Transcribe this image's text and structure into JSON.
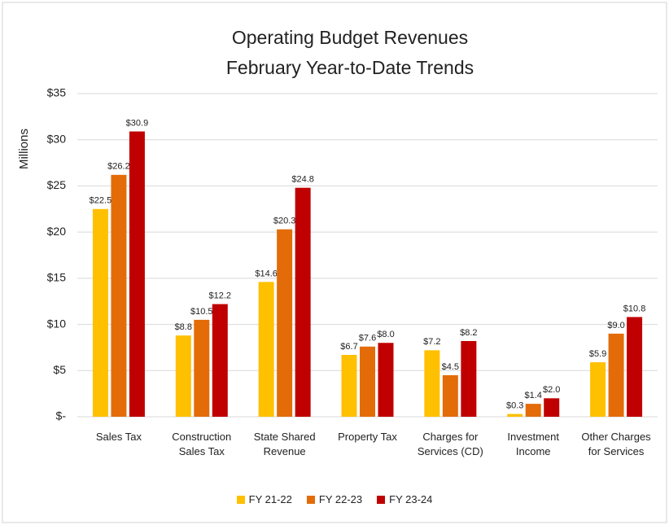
{
  "chart_data": {
    "type": "bar",
    "title": "Operating Budget Revenues",
    "subtitle": "February Year-to-Date Trends",
    "y_label": "Millions",
    "categories": [
      "Sales Tax",
      "Construction Sales Tax",
      "State Shared Revenue",
      "Property Tax",
      "Charges for Services (CD)",
      "Investment Income",
      "Other Charges for Services"
    ],
    "series": [
      {
        "name": "FY 21-22",
        "color": "#FFC000",
        "values": [
          22.5,
          8.8,
          14.6,
          6.7,
          7.2,
          0.3,
          5.9
        ],
        "value_labels": [
          "$22.5",
          "$8.8",
          "$14.6",
          "$6.7",
          "$7.2",
          "$0.3",
          "$5.9"
        ]
      },
      {
        "name": "FY 22-23",
        "color": "#E36C09",
        "values": [
          26.2,
          10.5,
          20.3,
          7.6,
          4.5,
          1.4,
          9.0
        ],
        "value_labels": [
          "$26.2",
          "$10.5",
          "$20.3",
          "$7.6",
          "$4.5",
          "$1.4",
          "$9.0"
        ]
      },
      {
        "name": "FY 23-24",
        "color": "#C00000",
        "values": [
          30.9,
          12.2,
          24.8,
          8.0,
          8.2,
          2.0,
          10.8
        ],
        "value_labels": [
          "$30.9",
          "$12.2",
          "$24.8",
          "$8.0",
          "$8.2",
          "$2.0",
          "$10.8"
        ]
      }
    ],
    "ylim": [
      0,
      35
    ],
    "yticks": [
      {
        "value": 0,
        "label": "$-"
      },
      {
        "value": 5,
        "label": "$5"
      },
      {
        "value": 10,
        "label": "$10"
      },
      {
        "value": 15,
        "label": "$15"
      },
      {
        "value": 20,
        "label": "$20"
      },
      {
        "value": 25,
        "label": "$25"
      },
      {
        "value": 30,
        "label": "$30"
      },
      {
        "value": 35,
        "label": "$35"
      }
    ],
    "grid": true,
    "legend": "bottom"
  }
}
